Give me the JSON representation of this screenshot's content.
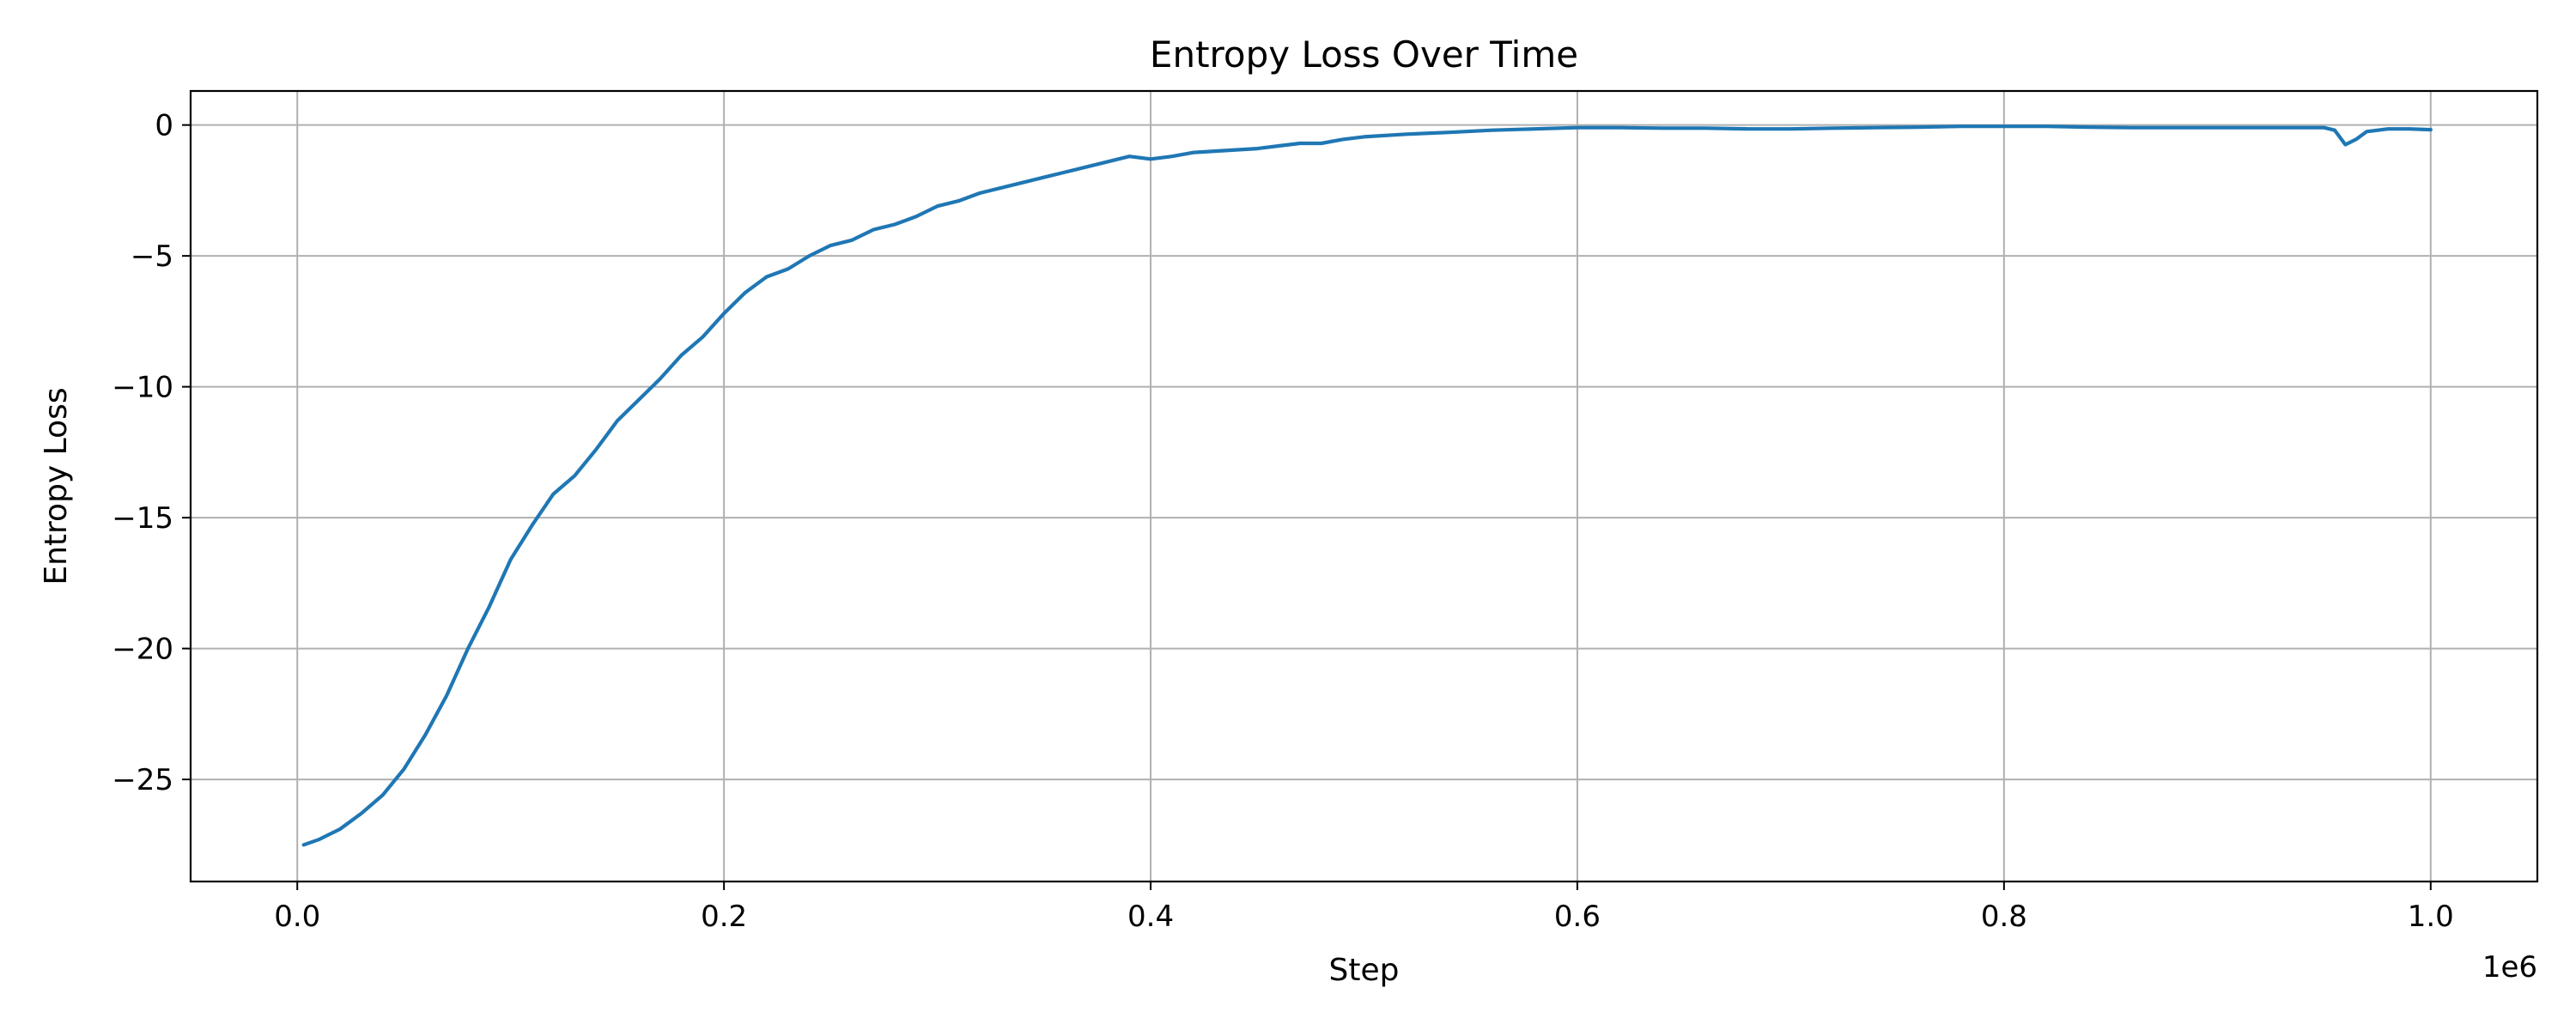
{
  "chart_data": {
    "type": "line",
    "title": "Entropy Loss Over Time",
    "xlabel": "Step",
    "ylabel": "Entropy Loss",
    "x_offset_label": "1e6",
    "xlim": [
      -0.05,
      1.05
    ],
    "ylim": [
      -28.9,
      1.3
    ],
    "xticks": [
      0.0,
      0.2,
      0.4,
      0.6,
      0.8,
      1.0
    ],
    "xtick_labels": [
      "0.0",
      "0.2",
      "0.4",
      "0.6",
      "0.8",
      "1.0"
    ],
    "yticks": [
      0,
      -5,
      -10,
      -15,
      -20,
      -25
    ],
    "ytick_labels": [
      "0",
      "−5",
      "−10",
      "−15",
      "−20",
      "−25"
    ],
    "grid": true,
    "colors": {
      "series": "#1f77b4",
      "grid": "#b0b0b0"
    },
    "series": [
      {
        "x": [
          0.003,
          0.01,
          0.02,
          0.03,
          0.04,
          0.05,
          0.06,
          0.07,
          0.08,
          0.09,
          0.1,
          0.11,
          0.12,
          0.13,
          0.14,
          0.15,
          0.16,
          0.17,
          0.18,
          0.19,
          0.2,
          0.21,
          0.22,
          0.23,
          0.24,
          0.25,
          0.26,
          0.27,
          0.28,
          0.29,
          0.3,
          0.31,
          0.32,
          0.33,
          0.34,
          0.35,
          0.36,
          0.37,
          0.38,
          0.39,
          0.4,
          0.41,
          0.42,
          0.43,
          0.44,
          0.45,
          0.46,
          0.47,
          0.48,
          0.49,
          0.5,
          0.52,
          0.54,
          0.56,
          0.58,
          0.6,
          0.62,
          0.64,
          0.66,
          0.68,
          0.7,
          0.72,
          0.74,
          0.76,
          0.78,
          0.8,
          0.82,
          0.84,
          0.86,
          0.88,
          0.9,
          0.92,
          0.94,
          0.95,
          0.955,
          0.96,
          0.965,
          0.97,
          0.98,
          0.99,
          1.0
        ],
        "y": [
          -27.5,
          -27.3,
          -26.9,
          -26.3,
          -25.6,
          -24.6,
          -23.3,
          -21.8,
          -20.0,
          -18.4,
          -16.6,
          -15.3,
          -14.1,
          -13.4,
          -12.4,
          -11.3,
          -10.5,
          -9.7,
          -8.8,
          -8.1,
          -7.2,
          -6.4,
          -5.8,
          -5.5,
          -5.0,
          -4.6,
          -4.4,
          -4.0,
          -3.8,
          -3.5,
          -3.1,
          -2.9,
          -2.6,
          -2.4,
          -2.2,
          -2.0,
          -1.8,
          -1.6,
          -1.4,
          -1.2,
          -1.3,
          -1.2,
          -1.05,
          -1.0,
          -0.95,
          -0.9,
          -0.8,
          -0.7,
          -0.7,
          -0.55,
          -0.45,
          -0.35,
          -0.28,
          -0.2,
          -0.15,
          -0.1,
          -0.1,
          -0.12,
          -0.12,
          -0.15,
          -0.15,
          -0.12,
          -0.1,
          -0.08,
          -0.05,
          -0.05,
          -0.05,
          -0.08,
          -0.1,
          -0.1,
          -0.1,
          -0.1,
          -0.1,
          -0.1,
          -0.2,
          -0.75,
          -0.55,
          -0.25,
          -0.15,
          -0.15,
          -0.18
        ]
      }
    ]
  }
}
